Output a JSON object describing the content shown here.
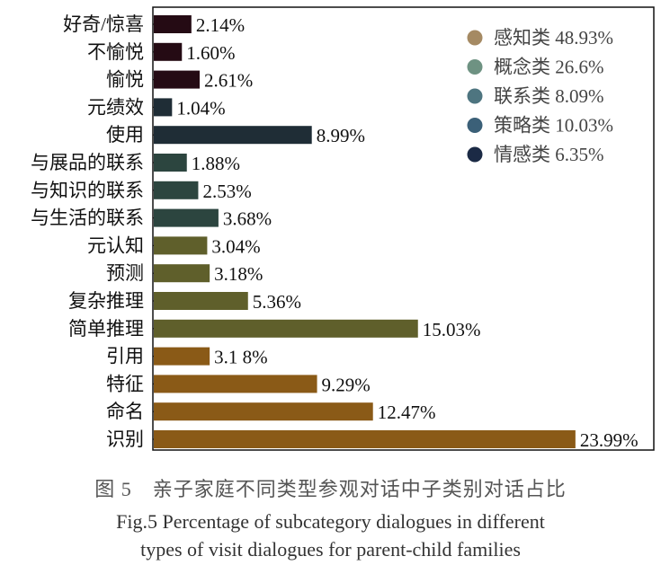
{
  "chart_data": {
    "type": "bar",
    "orientation": "horizontal",
    "categories": [
      "好奇/惊喜",
      "不愉悦",
      "愉悦",
      "元绩效",
      "使用",
      "与展品的联系",
      "与知识的联系",
      "与生活的联系",
      "元认知",
      "预测",
      "复杂推理",
      "简单推理",
      "引用",
      "特征",
      "命名",
      "识别"
    ],
    "values": [
      2.14,
      1.6,
      2.61,
      1.04,
      8.99,
      1.88,
      2.53,
      3.68,
      3.04,
      3.18,
      5.36,
      15.03,
      3.18,
      9.29,
      12.47,
      23.99
    ],
    "data_labels": [
      "2.14%",
      "1.60%",
      "2.61%",
      "1.04%",
      "8.99%",
      "1.88%",
      "2.53%",
      "3.68%",
      "3.04%",
      "3.18%",
      "5.36%",
      "15.03%",
      "3.1 8%",
      "9.29%",
      "12.47%",
      "23.99%"
    ],
    "groups": [
      "情感类",
      "情感类",
      "情感类",
      "策略类",
      "策略类",
      "联系类",
      "联系类",
      "联系类",
      "概念类",
      "概念类",
      "概念类",
      "概念类",
      "感知类",
      "感知类",
      "感知类",
      "感知类"
    ],
    "bar_colors": {
      "情感类": "#250b14",
      "策略类": "#1f2d36",
      "联系类": "#2c453f",
      "概念类": "#5f5f2b",
      "感知类": "#8a5a17"
    },
    "xlim": [
      0,
      28.5
    ],
    "grid": false,
    "legend": {
      "placement": "top-right",
      "entries": [
        {
          "label": "感知类 48.93%",
          "color": "#a58a63"
        },
        {
          "label": "概念类 26.6%",
          "color": "#6e9282"
        },
        {
          "label": "联系类 8.09%",
          "color": "#4e7580"
        },
        {
          "label": "策略类 10.03%",
          "color": "#3b6078"
        },
        {
          "label": "情感类 6.35%",
          "color": "#1b2a45"
        }
      ]
    }
  },
  "caption": {
    "cn": "图 5　亲子家庭不同类型参观对话中子类别对话占比",
    "en_line1": "Fig.5 Percentage of subcategory dialogues in different",
    "en_line2": "types of visit dialogues for parent-child families"
  }
}
